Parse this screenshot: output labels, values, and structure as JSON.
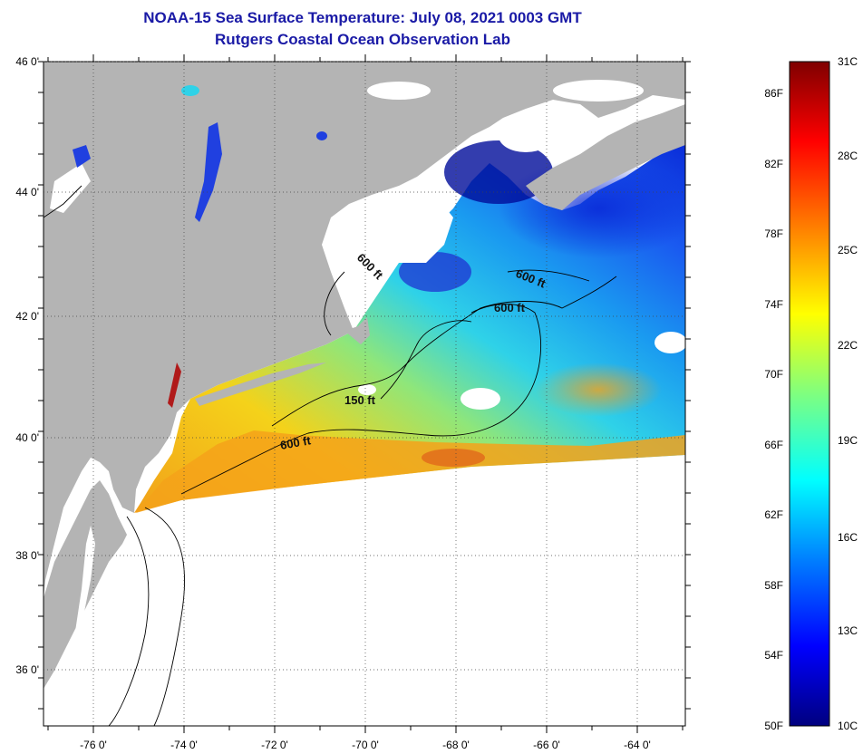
{
  "header": {
    "title": "NOAA-15 Sea Surface Temperature:  July 08, 2021 0003 GMT",
    "subtitle": "Rutgers Coastal Ocean Observation Lab"
  },
  "map": {
    "latitude_labels": [
      "46 0'",
      "44 0'",
      "42 0'",
      "40 0'",
      "38 0'",
      "36 0'"
    ],
    "longitude_labels": [
      "-76 0'",
      "-74 0'",
      "-72 0'",
      "-70 0'",
      "-68 0'",
      "-66 0'",
      "-64 0'"
    ],
    "contour_labels": [
      "600 ft",
      "600 ft",
      "600 ft",
      "150 ft",
      "600 ft"
    ],
    "land_color": "#b4b4b4",
    "cloud_color": "#ffffff"
  },
  "colorbar": {
    "fahrenheit_labels": [
      "86F",
      "82F",
      "78F",
      "74F",
      "70F",
      "66F",
      "62F",
      "58F",
      "54F",
      "50F"
    ],
    "celsius_labels": [
      "31C",
      "28C",
      "25C",
      "22C",
      "19C",
      "16C",
      "13C",
      "10C"
    ],
    "colors": [
      "#00007f",
      "#0000ff",
      "#007fff",
      "#00ffff",
      "#7fff7f",
      "#ffff00",
      "#ff7f00",
      "#ff0000",
      "#7f0000"
    ]
  }
}
